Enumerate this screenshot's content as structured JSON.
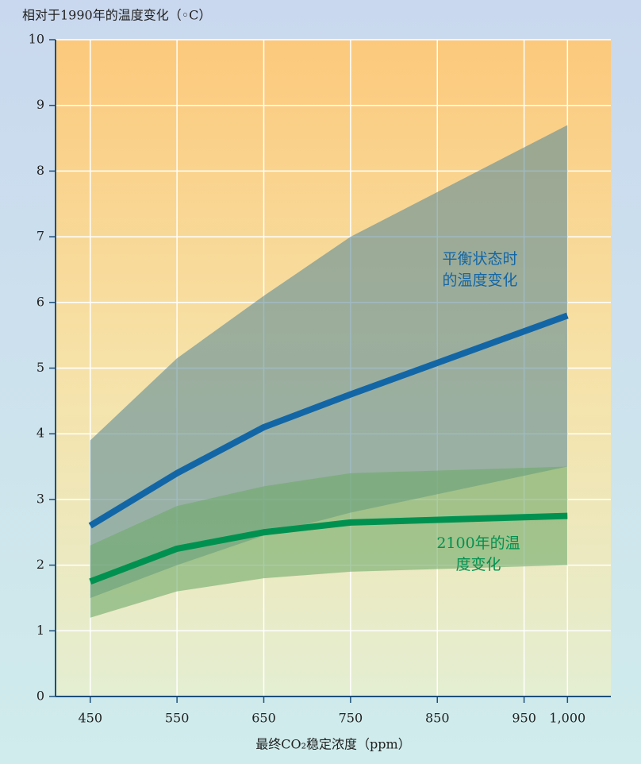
{
  "chart_data": {
    "type": "line",
    "title": "相对于1990年的温度变化（◦C）",
    "x_label": "最终CO₂稳定浓度（ppm）",
    "x": [
      450,
      550,
      650,
      750,
      1000
    ],
    "xlim": [
      410,
      1050
    ],
    "xticks": [
      450,
      550,
      650,
      750,
      850,
      950,
      {
        "value": 1000,
        "label": "1,000"
      }
    ],
    "ylim": [
      0,
      10
    ],
    "yticks": [
      0,
      1,
      2,
      3,
      4,
      5,
      6,
      7,
      8,
      9,
      10
    ],
    "grid": true,
    "bands": [
      {
        "color": "#5f8c98",
        "upper": [
          3.9,
          5.15,
          6.1,
          7.0,
          8.7
        ],
        "lower": [
          1.5,
          2.0,
          2.45,
          2.8,
          3.5
        ]
      },
      {
        "color": "#6faa6a",
        "upper": [
          2.3,
          2.9,
          3.2,
          3.4,
          3.5
        ],
        "lower": [
          1.2,
          1.6,
          1.8,
          1.9,
          2.0
        ]
      }
    ],
    "series": [
      {
        "color": "#1366a6",
        "values": [
          2.6,
          3.4,
          4.1,
          4.6,
          5.8
        ]
      },
      {
        "color": "#009150",
        "values": [
          1.75,
          2.25,
          2.5,
          2.65,
          2.75
        ]
      }
    ],
    "annotations": [
      {
        "lines": [
          "平衡状态时",
          "的温度变化"
        ],
        "color": "#1366a6"
      },
      {
        "lines": [
          "2100年的温",
          "度变化"
        ],
        "color": "#009150"
      }
    ]
  }
}
